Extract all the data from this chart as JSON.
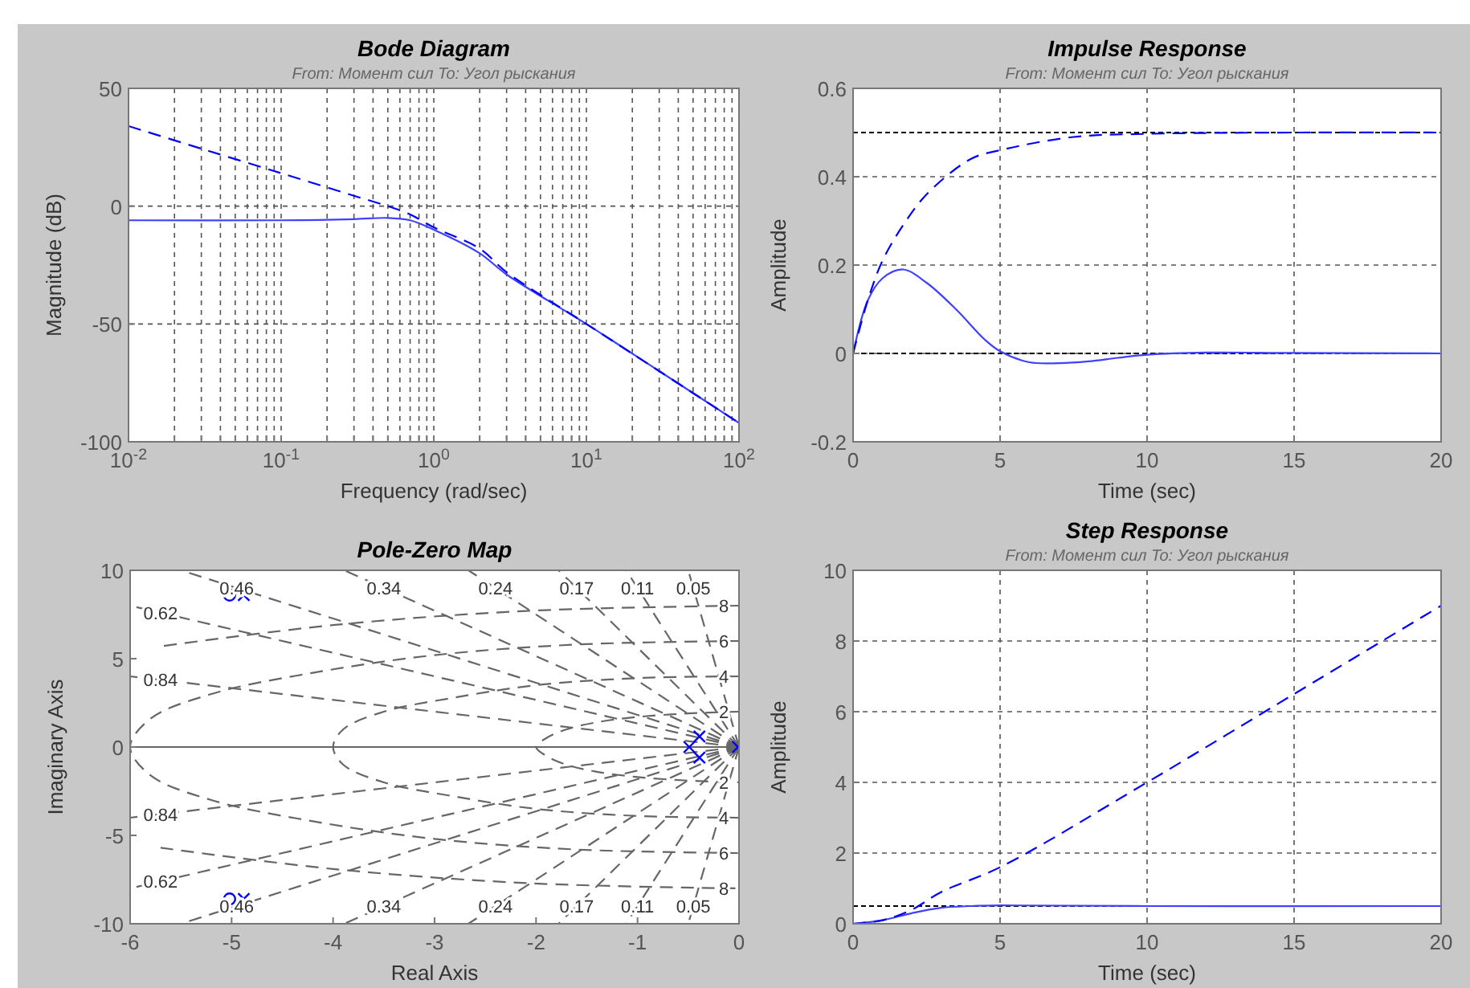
{
  "chart_data": [
    {
      "type": "line",
      "title": "Bode Diagram",
      "subtitle": "From:  Момент сил  To: Угол рыскания",
      "xlabel": "Frequency  (rad/sec)",
      "ylabel": "Magnitude (dB)",
      "log": "x",
      "xlim": [
        0.01,
        100
      ],
      "ylim": [
        -100,
        50
      ],
      "xticks": [
        {
          "value": 0.01,
          "label": "10$^{-2}$"
        },
        {
          "value": 0.02,
          "label": null
        },
        {
          "value": 0.03,
          "label": null
        },
        {
          "value": 0.04,
          "label": null
        },
        {
          "value": 0.05,
          "label": null
        },
        {
          "value": 0.06,
          "label": null
        },
        {
          "value": 0.07,
          "label": null
        },
        {
          "value": 0.08,
          "label": null
        },
        {
          "value": 0.09,
          "label": null
        },
        {
          "value": 0.1,
          "label": "10$^{-1}$"
        },
        {
          "value": 0.2,
          "label": null
        },
        {
          "value": 0.3,
          "label": null
        },
        {
          "value": 0.4,
          "label": null
        },
        {
          "value": 0.5,
          "label": null
        },
        {
          "value": 0.6,
          "label": null
        },
        {
          "value": 0.7,
          "label": null
        },
        {
          "value": 0.8,
          "label": null
        },
        {
          "value": 0.9,
          "label": null
        },
        {
          "value": 1,
          "label": "10$^{0}$"
        },
        {
          "value": 2,
          "label": null
        },
        {
          "value": 3,
          "label": null
        },
        {
          "value": 4,
          "label": null
        },
        {
          "value": 5,
          "label": null
        },
        {
          "value": 6,
          "label": null
        },
        {
          "value": 7,
          "label": null
        },
        {
          "value": 8,
          "label": null
        },
        {
          "value": 9,
          "label": null
        },
        {
          "value": 10,
          "label": "10$^{1}$"
        },
        {
          "value": 20,
          "label": null
        },
        {
          "value": 30,
          "label": null
        },
        {
          "value": 40,
          "label": null
        },
        {
          "value": 50,
          "label": null
        },
        {
          "value": 60,
          "label": null
        },
        {
          "value": 70,
          "label": null
        },
        {
          "value": 80,
          "label": null
        },
        {
          "value": 90,
          "label": null
        },
        {
          "value": 100,
          "label": "10$^{2}$"
        }
      ],
      "yticks": [
        -100,
        -50,
        0,
        50
      ],
      "grid": true,
      "series": [
        {
          "color": "#4040ff",
          "line_style": "solid",
          "x": [
            0.01,
            0.1,
            0.3,
            0.5,
            0.7,
            1,
            2,
            3,
            10,
            30,
            100
          ],
          "values": [
            -6,
            -6,
            -5.5,
            -5,
            -6,
            -10,
            -20,
            -29,
            -50,
            -70,
            -92
          ]
        },
        {
          "color": "#0000ff",
          "line_style": "dashed",
          "x": [
            0.01,
            0.03,
            0.1,
            0.3,
            0.5,
            0.7,
            1,
            2,
            3,
            10,
            30,
            100
          ],
          "values": [
            34,
            24.4,
            14,
            4.4,
            0,
            -3.5,
            -9,
            -18,
            -28,
            -50,
            -70,
            -92
          ]
        }
      ]
    },
    {
      "type": "line",
      "title": "Impulse Response",
      "subtitle": "From:  Момент сил  To: Угол рыскания",
      "xlabel": "Time (sec)",
      "ylabel": "Amplitude",
      "xlim": [
        0,
        20
      ],
      "ylim": [
        -0.2,
        0.6
      ],
      "xticks": [
        0,
        5,
        10,
        15,
        20
      ],
      "yticks": [
        -0.2,
        0,
        0.2,
        0.4,
        0.6
      ],
      "grid": true,
      "ref_lines": [
        {
          "axis": "y",
          "value": 0.5,
          "color": "#000000",
          "line_style": "dashed"
        },
        {
          "axis": "y",
          "value": 0,
          "color": "#000000",
          "line_style": "dashed"
        }
      ],
      "series": [
        {
          "color": "#4040ff",
          "line_style": "solid",
          "x": [
            0,
            0.5,
            1,
            1.7,
            2.5,
            3.5,
            4.5,
            5,
            6,
            7,
            8,
            9,
            10,
            12,
            15,
            20
          ],
          "values": [
            0,
            0.12,
            0.17,
            0.19,
            0.16,
            0.1,
            0.03,
            0.005,
            -0.02,
            -0.022,
            -0.018,
            -0.01,
            -0.003,
            0.002,
            0.001,
            0
          ]
        },
        {
          "color": "#0000ff",
          "line_style": "dashed",
          "x": [
            0,
            0.5,
            1,
            1.7,
            2.5,
            4,
            5,
            7.5,
            10,
            15,
            20
          ],
          "values": [
            0,
            0.12,
            0.21,
            0.29,
            0.36,
            0.44,
            0.46,
            0.49,
            0.497,
            0.5,
            0.5
          ]
        }
      ]
    },
    {
      "type": "scatter",
      "title": "Pole-Zero Map",
      "xlabel": "Real Axis",
      "ylabel": "Imaginary Axis",
      "xlim": [
        -6,
        0
      ],
      "ylim": [
        -10,
        10
      ],
      "xticks": [
        -6,
        -5,
        -4,
        -3,
        -2,
        -1,
        0
      ],
      "yticks": [
        -10,
        -5,
        0,
        5,
        10
      ],
      "annotations": [
        {
          "text": "0.46",
          "x": -4.95,
          "y": 9
        },
        {
          "text": "0.34",
          "x": -3.5,
          "y": 9
        },
        {
          "text": "0.24",
          "x": -2.4,
          "y": 9
        },
        {
          "text": "0.17",
          "x": -1.6,
          "y": 9
        },
        {
          "text": "0.11",
          "x": -1,
          "y": 9
        },
        {
          "text": "0.05",
          "x": -0.45,
          "y": 9
        },
        {
          "text": "0.62",
          "x": -5.7,
          "y": 7.6
        },
        {
          "text": "0.84",
          "x": -5.7,
          "y": 3.8
        },
        {
          "text": "0.46",
          "x": -4.95,
          "y": -9
        },
        {
          "text": "0.34",
          "x": -3.5,
          "y": -9
        },
        {
          "text": "0.24",
          "x": -2.4,
          "y": -9
        },
        {
          "text": "0.17",
          "x": -1.6,
          "y": -9
        },
        {
          "text": "0.11",
          "x": -1,
          "y": -9
        },
        {
          "text": "0.05",
          "x": -0.45,
          "y": -9
        },
        {
          "text": "0.62",
          "x": -5.7,
          "y": -7.6
        },
        {
          "text": "0.84",
          "x": -5.7,
          "y": -3.8
        },
        {
          "text": "8",
          "x": -0.15,
          "y": 8
        },
        {
          "text": "6",
          "x": -0.15,
          "y": 6
        },
        {
          "text": "4",
          "x": -0.15,
          "y": 4
        },
        {
          "text": "2",
          "x": -0.15,
          "y": 2
        },
        {
          "text": "2",
          "x": -0.15,
          "y": -2
        },
        {
          "text": "4",
          "x": -0.15,
          "y": -4
        },
        {
          "text": "6",
          "x": -0.15,
          "y": -6
        },
        {
          "text": "8",
          "x": -0.15,
          "y": -8
        }
      ],
      "series": [
        {
          "type": "line",
          "color": "#666666",
          "line_style": "solid",
          "x": [
            -6,
            0
          ],
          "values": [
            0,
            0
          ]
        },
        {
          "type": "line",
          "color": "#666666",
          "line_style": "dashed",
          "x": [
            0,
            -5.5
          ],
          "values": [
            0,
            10
          ]
        },
        {
          "type": "line",
          "color": "#666666",
          "line_style": "dashed",
          "x": [
            0,
            -3.889
          ],
          "values": [
            0,
            10
          ]
        },
        {
          "type": "line",
          "color": "#666666",
          "line_style": "dashed",
          "x": [
            0,
            -2.667
          ],
          "values": [
            0,
            10
          ]
        },
        {
          "type": "line",
          "color": "#666666",
          "line_style": "dashed",
          "x": [
            0,
            -1.778
          ],
          "values": [
            0,
            10
          ]
        },
        {
          "type": "line",
          "color": "#666666",
          "line_style": "dashed",
          "x": [
            0,
            -1.111
          ],
          "values": [
            0,
            10
          ]
        },
        {
          "type": "line",
          "color": "#666666",
          "line_style": "dashed",
          "x": [
            0,
            -0.5
          ],
          "values": [
            0,
            10
          ]
        },
        {
          "type": "line",
          "color": "#666666",
          "line_style": "dashed",
          "x": [
            0,
            -6
          ],
          "values": [
            0,
            8
          ]
        },
        {
          "type": "line",
          "color": "#666666",
          "line_style": "dashed",
          "x": [
            0,
            -6
          ],
          "values": [
            0,
            4
          ]
        },
        {
          "type": "line",
          "color": "#666666",
          "line_style": "dashed",
          "x": [
            0,
            -5.5
          ],
          "values": [
            0,
            -10
          ]
        },
        {
          "type": "line",
          "color": "#666666",
          "line_style": "dashed",
          "x": [
            0,
            -3.889
          ],
          "values": [
            0,
            -10
          ]
        },
        {
          "type": "line",
          "color": "#666666",
          "line_style": "dashed",
          "x": [
            0,
            -2.667
          ],
          "values": [
            0,
            -10
          ]
        },
        {
          "type": "line",
          "color": "#666666",
          "line_style": "dashed",
          "x": [
            0,
            -1.778
          ],
          "values": [
            0,
            -10
          ]
        },
        {
          "type": "line",
          "color": "#666666",
          "line_style": "dashed",
          "x": [
            0,
            -1.111
          ],
          "values": [
            0,
            -10
          ]
        },
        {
          "type": "line",
          "color": "#666666",
          "line_style": "dashed",
          "x": [
            0,
            -0.5
          ],
          "values": [
            0,
            -10
          ]
        },
        {
          "type": "line",
          "color": "#666666",
          "line_style": "dashed",
          "x": [
            0,
            -6
          ],
          "values": [
            0,
            -8
          ]
        },
        {
          "type": "line",
          "color": "#666666",
          "line_style": "dashed",
          "x": [
            0,
            -6
          ],
          "values": [
            0,
            -4
          ]
        },
        {
          "type": "line",
          "color": "#666666",
          "line_style": "dashed",
          "x": [
            0,
            -0.5,
            -1,
            -1.4,
            -1.7,
            -1.9,
            -2,
            -1.9,
            -1.7,
            -1.4,
            -1,
            -0.5,
            0
          ],
          "values": [
            2,
            1.9,
            1.7,
            1.4,
            1,
            0.5,
            0,
            -0.5,
            -1,
            -1.4,
            -1.7,
            -1.9,
            -2
          ]
        },
        {
          "type": "line",
          "color": "#666666",
          "line_style": "dashed",
          "x": [
            0,
            -1,
            -2,
            -2.8,
            -3.5,
            -3.9,
            -4,
            -3.9,
            -3.5,
            -2.8,
            -2,
            -1,
            0
          ],
          "values": [
            4,
            3.9,
            3.5,
            2.8,
            2,
            1,
            0,
            -1,
            -2,
            -2.8,
            -3.5,
            -3.9,
            -4
          ]
        },
        {
          "type": "line",
          "color": "#666666",
          "line_style": "dashed",
          "x": [
            0,
            -1.6,
            -3,
            -4.2,
            -5.2,
            -5.8,
            -6,
            -5.8,
            -5.2,
            -4.2,
            -3,
            -1.6,
            0
          ],
          "values": [
            6,
            5.8,
            5.2,
            4.2,
            3,
            1.6,
            0,
            -1.6,
            -3,
            -4.2,
            -5.2,
            -5.8,
            -6
          ]
        },
        {
          "type": "line",
          "color": "#666666",
          "line_style": "dashed",
          "x": [
            0,
            -2.1,
            -4,
            -5.7,
            null,
            null,
            null,
            null,
            null,
            -5.7,
            -4,
            -2.1,
            0
          ],
          "values": [
            8,
            7.7,
            6.9,
            5.7,
            null,
            null,
            null,
            null,
            null,
            -5.7,
            -6.9,
            -7.7,
            -8
          ]
        },
        {
          "color": "#0000ff",
          "marker": "cross",
          "x": [
            -4.88,
            -4.88,
            -0.49,
            -0.39,
            -0.39,
            -0.01
          ],
          "values": [
            8.6,
            -8.6,
            0,
            0.6,
            -0.6,
            0
          ]
        },
        {
          "color": "#0000ff",
          "marker": "circle",
          "x": [
            -5.02,
            -5.02
          ],
          "values": [
            8.6,
            -8.6
          ]
        }
      ]
    },
    {
      "type": "line",
      "title": "Step Response",
      "subtitle": "From:  Момент сил  To: Угол рыскания",
      "xlabel": "Time (sec)",
      "ylabel": "Amplitude",
      "xlim": [
        0,
        20
      ],
      "ylim": [
        0,
        10
      ],
      "xticks": [
        0,
        5,
        10,
        15,
        20
      ],
      "yticks": [
        0,
        2,
        4,
        6,
        8,
        10
      ],
      "grid": true,
      "ref_lines": [
        {
          "axis": "y",
          "value": 0.5,
          "color": "#000000",
          "line_style": "dashed"
        }
      ],
      "series": [
        {
          "color": "#4040ff",
          "line_style": "solid",
          "x": [
            0,
            1,
            2,
            3,
            4,
            5,
            10,
            20
          ],
          "values": [
            0,
            0.1,
            0.3,
            0.45,
            0.5,
            0.52,
            0.5,
            0.5
          ]
        },
        {
          "color": "#0000ff",
          "line_style": "dashed",
          "x": [
            0,
            1,
            2,
            3,
            5,
            10,
            15,
            20
          ],
          "values": [
            0,
            0.1,
            0.4,
            0.9,
            1.6,
            4,
            6.5,
            9
          ]
        }
      ]
    }
  ]
}
